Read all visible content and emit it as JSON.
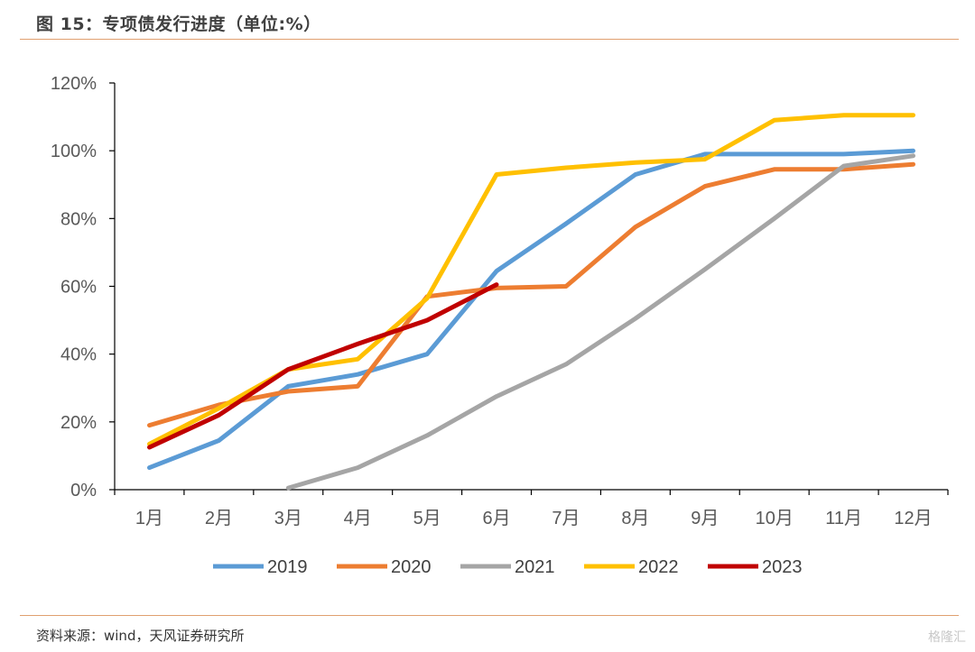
{
  "header": {
    "title": "图 15：专项债发行进度（单位:%）"
  },
  "footer": {
    "source": "资料来源：wind，天风证券研究所",
    "watermark": "格隆汇"
  },
  "chart_data": {
    "type": "line",
    "title": "图 15：专项债发行进度（单位:%）",
    "xlabel": "",
    "ylabel": "",
    "categories": [
      "1月",
      "2月",
      "3月",
      "4月",
      "5月",
      "6月",
      "7月",
      "8月",
      "9月",
      "10月",
      "11月",
      "12月"
    ],
    "ylim": [
      0,
      120
    ],
    "yticks": [
      0,
      20,
      40,
      60,
      80,
      100,
      120
    ],
    "ytick_labels": [
      "0%",
      "20%",
      "40%",
      "60%",
      "80%",
      "100%",
      "120%"
    ],
    "grid": false,
    "legend_position": "bottom",
    "series": [
      {
        "name": "2019",
        "color": "#5b9bd5",
        "values": [
          6.5,
          14.5,
          30.5,
          34,
          40,
          64.5,
          78.5,
          93,
          99,
          99,
          99,
          100
        ]
      },
      {
        "name": "2020",
        "color": "#ed7d31",
        "values": [
          19,
          25,
          29,
          30.5,
          57,
          59.5,
          60,
          77.5,
          89.5,
          94.5,
          94.5,
          96
        ]
      },
      {
        "name": "2021",
        "color": "#a5a5a5",
        "values": [
          null,
          null,
          0.5,
          6.5,
          16,
          27.5,
          37,
          50.5,
          65,
          80,
          95.5,
          98.5
        ]
      },
      {
        "name": "2022",
        "color": "#ffc000",
        "values": [
          13.5,
          24,
          35.5,
          38.5,
          56.5,
          93,
          95,
          96.5,
          97.5,
          109,
          110.5,
          110.5
        ]
      },
      {
        "name": "2023",
        "color": "#c00000",
        "values": [
          12.5,
          22,
          35.5,
          43,
          50,
          60.5,
          null,
          null,
          null,
          null,
          null,
          null
        ]
      }
    ]
  }
}
